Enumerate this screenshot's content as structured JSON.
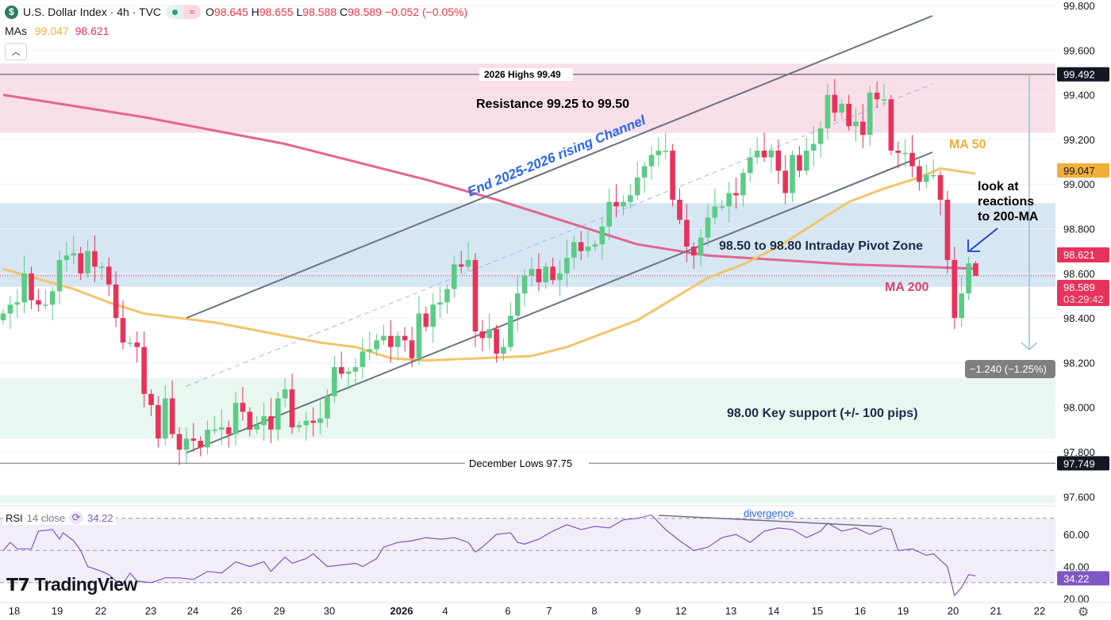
{
  "header": {
    "symbol_icon": "dollar-icon",
    "title": "U.S. Dollar Index · 4h · TVC",
    "ohlc": {
      "o_label": "O",
      "o": "98.645",
      "h_label": "H",
      "h": "98.655",
      "l_label": "L",
      "l": "98.588",
      "c_label": "C",
      "c": "98.589",
      "change": "−0.052 (−0.05%)"
    },
    "ma_label": "MAs",
    "ma50_value": "99.047",
    "ma200_value": "98.621",
    "collapse_icon": "chevron-up-icon"
  },
  "colors": {
    "up": "#5ccb86",
    "down": "#e8325a",
    "ma50": "#f3c46b",
    "ma200": "#e26592",
    "rsi": "#7e57c2",
    "channel": "#6b7280",
    "annotation_blue": "#2962ff",
    "resistance_zone": "#f9dfe8",
    "pivot_zone": "#d6e6f3",
    "support_zone": "#e8f7ef"
  },
  "annotations": {
    "highs": "2026 Highs 99.49",
    "resistance": "Resistance 99.25 to 99.50",
    "channel": "End 2025-2026 rising Channel",
    "ma50": "MA 50",
    "look_at": [
      "look at",
      "reactions",
      "to 200-MA"
    ],
    "pivot": "98.50 to 98.80 Intraday Pivot Zone",
    "ma200": "MA 200",
    "support": "98.00 Key support (+/- 100 pips)",
    "december_lows": "December Lows 97.75",
    "divergence": "divergence",
    "measure": "−1.240 (−1.25%)"
  },
  "price_axis": {
    "ticks": [
      "99.800",
      "99.600",
      "99.400",
      "99.200",
      "99.000",
      "98.800",
      "98.600",
      "98.400",
      "98.200",
      "98.000",
      "97.800",
      "97.600"
    ],
    "badges": {
      "highs": "99.492",
      "ma50": "99.047",
      "ma200": "98.621",
      "last": "98.589",
      "countdown": "03:29:42",
      "lows": "97.749"
    }
  },
  "rsi": {
    "label": "RSI",
    "params": "14 close",
    "value": "34.22",
    "ticks": [
      "60.00",
      "40.00",
      "20.00"
    ]
  },
  "time_axis": [
    "18",
    "19",
    "22",
    "23",
    "24",
    "26",
    "29",
    "30",
    "2026",
    "4",
    "6",
    "7",
    "8",
    "9",
    "12",
    "13",
    "14",
    "15",
    "16",
    "19",
    "20",
    "21",
    "22"
  ],
  "branding": "TradingView",
  "chart_data": {
    "type": "candlestick",
    "title": "U.S. Dollar Index · 4h · TVC",
    "ylim": [
      97.55,
      99.82
    ],
    "zones": [
      {
        "name": "Resistance",
        "from": 99.23,
        "to": 99.54
      },
      {
        "name": "Intraday Pivot Zone",
        "from": 98.54,
        "to": 98.915
      },
      {
        "name": "Key support",
        "from": 97.86,
        "to": 98.13
      }
    ],
    "levels": [
      {
        "name": "2026 Highs",
        "value": 99.492
      },
      {
        "name": "December Lows",
        "value": 97.749
      }
    ],
    "last_candle": {
      "open": 98.645,
      "high": 98.655,
      "low": 98.588,
      "close": 98.589
    },
    "closes": [
      98.42,
      98.46,
      98.47,
      98.6,
      98.48,
      98.46,
      98.46,
      98.52,
      98.66,
      98.68,
      98.69,
      98.6,
      98.7,
      98.63,
      98.63,
      98.55,
      98.4,
      98.29,
      98.29,
      98.27,
      98.06,
      98.01,
      97.86,
      98.04,
      97.88,
      97.81,
      97.86,
      97.85,
      97.82,
      97.9,
      97.9,
      97.91,
      97.88,
      98.02,
      97.98,
      97.9,
      97.92,
      97.96,
      97.9,
      98.04,
      98.08,
      97.91,
      97.92,
      97.94,
      97.93,
      97.95,
      98.05,
      98.18,
      98.15,
      98.16,
      98.18,
      98.25,
      98.26,
      98.3,
      98.32,
      98.27,
      98.32,
      98.3,
      98.22,
      98.42,
      98.36,
      98.46,
      98.47,
      98.53,
      98.64,
      98.63,
      98.66,
      98.34,
      98.31,
      98.35,
      98.24,
      98.27,
      98.41,
      98.51,
      98.59,
      98.62,
      98.56,
      98.63,
      98.57,
      98.6,
      98.67,
      98.74,
      98.7,
      98.72,
      98.73,
      98.81,
      98.92,
      98.9,
      98.92,
      98.95,
      99.03,
      99.08,
      99.13,
      99.15,
      99.15,
      98.93,
      98.84,
      98.72,
      98.68,
      98.76,
      98.85,
      98.9,
      98.9,
      98.96,
      98.95,
      99.05,
      99.12,
      99.15,
      99.12,
      99.15,
      99.06,
      98.96,
      99.13,
      99.06,
      99.15,
      99.18,
      99.25,
      99.4,
      99.32,
      99.36,
      99.26,
      99.28,
      99.22,
      99.41,
      99.38,
      99.38,
      99.15,
      99.14,
      99.14,
      99.08,
      99.01,
      99.04,
      99.04,
      98.93,
      98.66,
      98.4,
      98.51,
      98.645,
      98.589
    ],
    "ma50": [
      [
        0,
        98.62
      ],
      [
        10,
        98.53
      ],
      [
        15,
        98.47
      ],
      [
        20,
        98.42
      ],
      [
        30,
        98.38
      ],
      [
        40,
        98.32
      ],
      [
        45,
        98.29
      ],
      [
        50,
        98.27
      ],
      [
        55,
        98.22
      ],
      [
        60,
        98.21
      ],
      [
        68,
        98.22
      ],
      [
        75,
        98.23
      ],
      [
        80,
        98.27
      ],
      [
        90,
        98.39
      ],
      [
        100,
        98.58
      ],
      [
        105,
        98.64
      ],
      [
        110,
        98.72
      ],
      [
        115,
        98.82
      ],
      [
        120,
        98.92
      ],
      [
        125,
        98.98
      ],
      [
        130,
        99.03
      ],
      [
        133,
        99.07
      ],
      [
        138,
        99.047
      ]
    ],
    "ma200": [
      [
        0,
        99.4
      ],
      [
        20,
        99.3
      ],
      [
        40,
        99.18
      ],
      [
        60,
        99.02
      ],
      [
        70,
        98.93
      ],
      [
        80,
        98.83
      ],
      [
        90,
        98.73
      ],
      [
        100,
        98.68
      ],
      [
        110,
        98.66
      ],
      [
        120,
        98.64
      ],
      [
        130,
        98.63
      ],
      [
        138,
        98.621
      ]
    ],
    "rsi_series": [
      [
        0,
        50
      ],
      [
        1,
        55
      ],
      [
        2,
        51
      ],
      [
        4,
        51
      ],
      [
        5,
        62
      ],
      [
        7,
        63
      ],
      [
        8,
        57
      ],
      [
        8.5,
        61
      ],
      [
        10,
        56
      ],
      [
        11,
        50
      ],
      [
        12,
        40
      ],
      [
        14,
        37
      ],
      [
        15,
        35
      ],
      [
        16,
        31
      ],
      [
        17,
        29
      ],
      [
        18,
        36
      ],
      [
        19,
        31
      ],
      [
        21,
        30
      ],
      [
        23,
        33
      ],
      [
        25,
        33
      ],
      [
        27,
        32
      ],
      [
        29,
        37
      ],
      [
        31,
        36
      ],
      [
        33,
        43
      ],
      [
        35,
        40
      ],
      [
        37,
        43
      ],
      [
        38,
        37
      ],
      [
        40,
        46
      ],
      [
        41,
        42
      ],
      [
        43,
        45
      ],
      [
        44,
        48
      ],
      [
        46,
        40
      ],
      [
        48,
        41
      ],
      [
        50,
        42
      ],
      [
        51,
        40
      ],
      [
        53,
        45
      ],
      [
        54,
        52
      ],
      [
        56,
        55
      ],
      [
        58,
        56
      ],
      [
        60,
        58
      ],
      [
        62,
        57
      ],
      [
        64,
        58
      ],
      [
        66,
        55
      ],
      [
        67,
        49
      ],
      [
        68,
        52
      ],
      [
        70,
        60
      ],
      [
        72,
        61
      ],
      [
        73,
        55
      ],
      [
        74,
        54
      ],
      [
        76,
        57
      ],
      [
        78,
        62
      ],
      [
        80,
        66
      ],
      [
        82,
        63
      ],
      [
        84,
        65
      ],
      [
        86,
        64
      ],
      [
        88,
        69
      ],
      [
        90,
        70
      ],
      [
        92,
        72
      ],
      [
        94,
        63
      ],
      [
        96,
        56
      ],
      [
        98,
        50
      ],
      [
        100,
        52
      ],
      [
        102,
        58
      ],
      [
        104,
        60
      ],
      [
        106,
        55
      ],
      [
        108,
        62
      ],
      [
        110,
        64
      ],
      [
        112,
        63
      ],
      [
        114,
        58
      ],
      [
        116,
        62
      ],
      [
        117,
        67
      ],
      [
        119,
        62
      ],
      [
        121,
        64
      ],
      [
        123,
        60
      ],
      [
        125,
        64
      ],
      [
        126,
        63
      ],
      [
        127,
        50
      ],
      [
        129,
        51
      ],
      [
        131,
        47
      ],
      [
        132,
        48
      ],
      [
        134,
        40
      ],
      [
        135,
        22
      ],
      [
        136,
        27
      ],
      [
        137,
        35
      ],
      [
        138,
        34.22
      ]
    ],
    "rsi_levels": [
      70,
      50,
      30
    ]
  }
}
